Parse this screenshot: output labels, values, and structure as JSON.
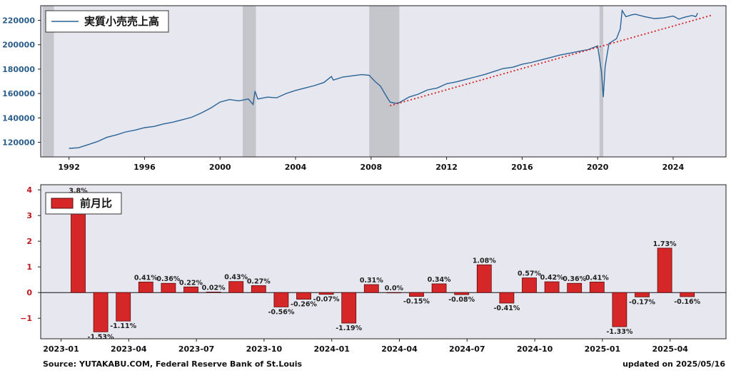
{
  "colors": {
    "plot_bg": "#e7e7f0",
    "line": "#2a6496",
    "trend": "#d42020",
    "recession": "#c5c6cc",
    "bar": "#d62728",
    "bar_edge": "#5a0c0c"
  },
  "footer": {
    "source": "Source: YUTAKABU.COM, Federal Reserve Bank of St.Louis",
    "updated": "updated on 2025/05/16"
  },
  "chart_data": [
    {
      "type": "line",
      "legend": "実質小売売上高",
      "legend_position": "top-left",
      "grid": false,
      "xlim": [
        1990.5,
        2026.8
      ],
      "ylim": [
        108000,
        232000
      ],
      "x_ticks": [
        "1992",
        "1996",
        "2000",
        "2004",
        "2008",
        "2012",
        "2016",
        "2020",
        "2024"
      ],
      "y_ticks": [
        "120000",
        "140000",
        "160000",
        "180000",
        "200000",
        "220000"
      ],
      "recessions": [
        [
          1990.6,
          1991.2
        ],
        [
          2001.2,
          2001.9
        ],
        [
          2007.9,
          2009.5
        ],
        [
          2020.1,
          2020.3
        ]
      ],
      "trend_line": {
        "x": [
          2009.0,
          2026.0
        ],
        "y": [
          150000,
          224000
        ]
      },
      "series": [
        {
          "x": [
            1992.0,
            1992.5,
            1993.0,
            1993.5,
            1994.0,
            1994.5,
            1995.0,
            1995.5,
            1996.0,
            1996.5,
            1997.0,
            1997.5,
            1998.0,
            1998.5,
            1999.0,
            1999.5,
            2000.0,
            2000.5,
            2001.0,
            2001.5,
            2001.75,
            2001.85,
            2002.0,
            2002.5,
            2003.0,
            2003.5,
            2004.0,
            2004.5,
            2005.0,
            2005.5,
            2005.9,
            2006.0,
            2006.5,
            2007.0,
            2007.5,
            2007.9,
            2008.2,
            2008.5,
            2008.8,
            2009.0,
            2009.3,
            2009.5,
            2010.0,
            2010.5,
            2011.0,
            2011.5,
            2012.0,
            2012.5,
            2013.0,
            2013.5,
            2014.0,
            2014.5,
            2015.0,
            2015.5,
            2016.0,
            2016.5,
            2017.0,
            2017.5,
            2018.0,
            2018.5,
            2019.0,
            2019.5,
            2020.0,
            2020.2,
            2020.3,
            2020.4,
            2020.6,
            2021.0,
            2021.2,
            2021.3,
            2021.5,
            2021.8,
            2022.0,
            2022.5,
            2023.0,
            2023.5,
            2024.0,
            2024.3,
            2024.6,
            2025.0,
            2025.2,
            2025.3
          ],
          "y": [
            115000,
            115500,
            118000,
            120500,
            124000,
            126000,
            128500,
            130000,
            132000,
            133000,
            135000,
            136500,
            138500,
            140500,
            144000,
            148000,
            153000,
            155000,
            154000,
            155500,
            151000,
            162000,
            155500,
            157000,
            156500,
            160000,
            162500,
            164500,
            166500,
            169000,
            174000,
            171000,
            173500,
            174500,
            175500,
            175000,
            170000,
            166000,
            158000,
            153000,
            152000,
            152500,
            157000,
            159500,
            163000,
            164500,
            168000,
            169500,
            171500,
            173500,
            175500,
            178000,
            180500,
            181500,
            184000,
            185500,
            187500,
            189500,
            191500,
            193000,
            194500,
            196000,
            199000,
            178000,
            157000,
            182000,
            201000,
            205000,
            213000,
            228000,
            223000,
            224500,
            225000,
            223000,
            221500,
            222000,
            223500,
            221000,
            222500,
            224000,
            223000,
            226000
          ]
        }
      ]
    },
    {
      "type": "bar",
      "legend": "前月比",
      "legend_position": "top-left",
      "grid": false,
      "ylim": [
        -1.8,
        4.2
      ],
      "y_ticks": [
        "4",
        "3",
        "2",
        "1",
        "0",
        "−1"
      ],
      "x_ticks": [
        "2023-01",
        "2023-04",
        "2023-07",
        "2023-10",
        "2024-01",
        "2024-04",
        "2024-07",
        "2024-10",
        "2025-01",
        "2025-04"
      ],
      "labels": [
        "3.8%",
        "-1.53%",
        "-1.11%",
        "0.41%",
        "0.36%",
        "0.22%",
        "0.02%",
        "0.43%",
        "0.27%",
        "-0.56%",
        "-0.26%",
        "-0.07%",
        "-1.19%",
        "0.31%",
        "0.0%",
        "-0.15%",
        "0.34%",
        "-0.08%",
        "1.08%",
        "-0.41%",
        "0.57%",
        "0.42%",
        "0.36%",
        "0.41%",
        "-1.33%",
        "-0.17%",
        "1.73%",
        "-0.16%"
      ],
      "values": [
        3.8,
        -1.53,
        -1.11,
        0.41,
        0.36,
        0.22,
        0.02,
        0.43,
        0.27,
        -0.56,
        -0.26,
        -0.07,
        -1.19,
        0.31,
        0.0,
        -0.15,
        0.34,
        -0.08,
        1.08,
        -0.41,
        0.57,
        0.42,
        0.36,
        0.41,
        -1.33,
        -0.17,
        1.73,
        -0.16
      ]
    }
  ]
}
